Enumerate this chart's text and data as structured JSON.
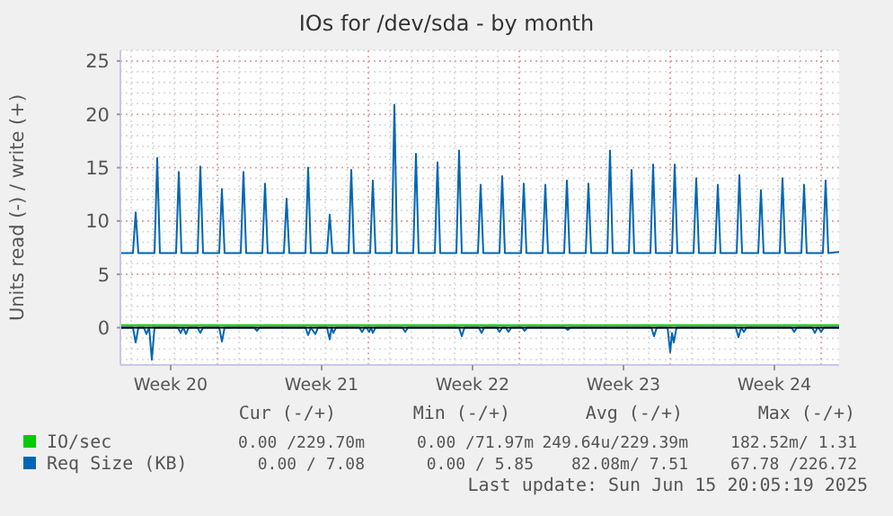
{
  "chart_data": {
    "type": "line",
    "title": "IOs for /dev/sda - by month",
    "ylabel": "Units read (-) / write (+)",
    "xlim": [
      "2025-05-13T12:00",
      "2025-06-15T20:00"
    ],
    "xticks": [
      {
        "value": "2025-05-15T20:00",
        "label": "Week 20"
      },
      {
        "value": "2025-05-22T20:00",
        "label": "Week 21"
      },
      {
        "value": "2025-05-29T20:00",
        "label": "Week 22"
      },
      {
        "value": "2025-06-05T20:00",
        "label": "Week 23"
      },
      {
        "value": "2025-06-12T20:00",
        "label": "Week 24"
      }
    ],
    "ylim": [
      -3.5,
      26
    ],
    "yticks": [
      0,
      5,
      10,
      15,
      20,
      25
    ],
    "grid": true,
    "legend": "bottom",
    "ref_lines": [
      {
        "axis": "y",
        "value": 0,
        "color": "#000000"
      }
    ],
    "series": [
      {
        "name": "IO/sec",
        "color": "#00cc00",
        "x": [
          "2025-05-13T12:00",
          "2025-06-15T20:00"
        ],
        "values": [
          0.23,
          0.23
        ]
      },
      {
        "name": "Req Size (KB)",
        "color": "#0066b3",
        "x": [
          "2025-05-13T12:00",
          "2025-05-14T02:00",
          "2025-05-14T05:00",
          "2025-05-14T08:00",
          "2025-05-15T02:00",
          "2025-05-15T05:00",
          "2025-05-15T08:00",
          "2025-05-16T02:00",
          "2025-05-16T05:00",
          "2025-05-16T08:00",
          "2025-05-17T02:00",
          "2025-05-17T05:00",
          "2025-05-17T08:00",
          "2025-05-18T02:00",
          "2025-05-18T05:00",
          "2025-05-18T08:00",
          "2025-05-19T02:00",
          "2025-05-19T05:00",
          "2025-05-19T08:00",
          "2025-05-20T02:00",
          "2025-05-20T05:00",
          "2025-05-20T08:00",
          "2025-05-21T02:00",
          "2025-05-21T05:00",
          "2025-05-21T08:00",
          "2025-05-22T02:00",
          "2025-05-22T05:00",
          "2025-05-22T08:00",
          "2025-05-23T02:00",
          "2025-05-23T05:00",
          "2025-05-23T08:00",
          "2025-05-24T02:00",
          "2025-05-24T05:00",
          "2025-05-24T08:00",
          "2025-05-25T02:00",
          "2025-05-25T05:00",
          "2025-05-25T08:00",
          "2025-05-26T02:00",
          "2025-05-26T05:00",
          "2025-05-26T08:00",
          "2025-05-27T02:00",
          "2025-05-27T05:00",
          "2025-05-27T08:00",
          "2025-05-28T02:00",
          "2025-05-28T05:00",
          "2025-05-28T08:00",
          "2025-05-29T02:00",
          "2025-05-29T05:00",
          "2025-05-29T08:00",
          "2025-05-30T02:00",
          "2025-05-30T05:00",
          "2025-05-30T08:00",
          "2025-05-31T02:00",
          "2025-05-31T05:00",
          "2025-05-31T08:00",
          "2025-06-01T02:00",
          "2025-06-01T05:00",
          "2025-06-01T08:00",
          "2025-06-02T02:00",
          "2025-06-02T05:00",
          "2025-06-02T08:00",
          "2025-06-03T02:00",
          "2025-06-03T05:00",
          "2025-06-03T08:00",
          "2025-06-04T02:00",
          "2025-06-04T05:00",
          "2025-06-04T08:00",
          "2025-06-05T02:00",
          "2025-06-05T05:00",
          "2025-06-05T08:00",
          "2025-06-06T02:00",
          "2025-06-06T05:00",
          "2025-06-06T08:00",
          "2025-06-07T02:00",
          "2025-06-07T05:00",
          "2025-06-07T08:00",
          "2025-06-08T02:00",
          "2025-06-08T05:00",
          "2025-06-08T08:00",
          "2025-06-09T02:00",
          "2025-06-09T05:00",
          "2025-06-09T08:00",
          "2025-06-10T02:00",
          "2025-06-10T05:00",
          "2025-06-10T08:00",
          "2025-06-11T02:00",
          "2025-06-11T05:00",
          "2025-06-11T08:00",
          "2025-06-12T02:00",
          "2025-06-12T05:00",
          "2025-06-12T08:00",
          "2025-06-13T02:00",
          "2025-06-13T05:00",
          "2025-06-13T08:00",
          "2025-06-14T02:00",
          "2025-06-14T05:00",
          "2025-06-14T08:00",
          "2025-06-15T02:00",
          "2025-06-15T05:00",
          "2025-06-15T08:00",
          "2025-06-15T20:00"
        ],
        "values": [
          7.0,
          7.0,
          10.8,
          7.0,
          7.0,
          15.9,
          7.0,
          7.0,
          14.6,
          7.0,
          7.0,
          15.1,
          7.0,
          7.0,
          13.0,
          7.0,
          7.0,
          14.6,
          7.0,
          7.0,
          13.5,
          7.0,
          7.0,
          12.1,
          7.0,
          7.0,
          15.0,
          7.0,
          7.0,
          10.6,
          7.0,
          7.0,
          14.8,
          7.0,
          7.0,
          13.8,
          7.0,
          7.0,
          20.9,
          7.0,
          7.0,
          16.3,
          7.0,
          7.0,
          15.5,
          7.0,
          7.0,
          16.6,
          7.0,
          7.0,
          13.4,
          7.0,
          7.0,
          14.2,
          7.0,
          7.0,
          13.5,
          7.0,
          7.0,
          13.4,
          7.0,
          7.0,
          13.8,
          7.0,
          7.0,
          13.5,
          7.0,
          7.0,
          16.6,
          7.0,
          7.0,
          14.8,
          7.0,
          7.0,
          15.3,
          7.0,
          7.0,
          15.3,
          7.0,
          7.0,
          14.0,
          7.0,
          7.0,
          13.4,
          7.0,
          7.0,
          14.3,
          7.0,
          7.0,
          12.9,
          7.0,
          7.0,
          14.0,
          7.0,
          7.0,
          13.4,
          7.0,
          7.0,
          13.8,
          7.0,
          7.1
        ]
      },
      {
        "color": "#0066b3",
        "x": [
          "2025-05-13T12:00",
          "2025-05-14T02:00",
          "2025-05-14T05:00",
          "2025-05-14T08:00",
          "2025-05-14T14:00",
          "2025-05-14T17:00",
          "2025-05-14T20:00",
          "2025-05-14T23:00",
          "2025-05-15T02:00",
          "2025-05-16T04:00",
          "2025-05-16T07:00",
          "2025-05-16T10:00",
          "2025-05-16T13:00",
          "2025-05-16T16:00",
          "2025-05-17T02:00",
          "2025-05-17T05:00",
          "2025-05-17T08:00",
          "2025-05-18T02:00",
          "2025-05-18T05:00",
          "2025-05-18T08:00",
          "2025-05-19T17:00",
          "2025-05-19T20:00",
          "2025-05-19T23:00",
          "2025-05-22T02:00",
          "2025-05-22T05:00",
          "2025-05-22T08:00",
          "2025-05-22T13:00",
          "2025-05-22T16:00",
          "2025-05-23T02:00",
          "2025-05-23T05:00",
          "2025-05-23T07:00",
          "2025-05-23T09:00",
          "2025-05-23T12:00",
          "2025-05-24T14:00",
          "2025-05-24T17:00",
          "2025-05-24T20:00",
          "2025-05-24T22:00",
          "2025-05-25T01:00",
          "2025-05-25T03:00",
          "2025-05-25T05:00",
          "2025-05-25T08:00",
          "2025-05-26T14:00",
          "2025-05-26T17:00",
          "2025-05-26T20:00",
          "2025-05-29T05:00",
          "2025-05-29T08:00",
          "2025-05-29T11:00",
          "2025-05-30T03:00",
          "2025-05-30T06:00",
          "2025-05-30T09:00",
          "2025-05-30T23:00",
          "2025-05-31T02:00",
          "2025-05-31T05:00",
          "2025-05-31T09:00",
          "2025-05-31T12:00",
          "2025-05-31T15:00",
          "2025-06-01T03:00",
          "2025-06-01T06:00",
          "2025-06-01T09:00",
          "2025-06-03T03:00",
          "2025-06-03T06:00",
          "2025-06-03T09:00",
          "2025-06-07T03:00",
          "2025-06-07T06:00",
          "2025-06-07T09:00",
          "2025-06-07T21:00",
          "2025-06-08T00:00",
          "2025-06-08T02:00",
          "2025-06-08T04:00",
          "2025-06-08T07:00",
          "2025-06-11T01:00",
          "2025-06-11T04:00",
          "2025-06-11T07:00",
          "2025-06-11T10:00",
          "2025-06-11T13:00",
          "2025-06-13T15:00",
          "2025-06-13T18:00",
          "2025-06-13T21:00",
          "2025-06-14T14:00",
          "2025-06-14T17:00",
          "2025-06-14T20:00",
          "2025-06-14T21:00",
          "2025-06-15T00:00",
          "2025-06-15T03:00",
          "2025-06-15T20:00"
        ],
        "values": [
          0,
          0,
          -1.4,
          0,
          0,
          -0.6,
          0,
          -3.0,
          0,
          0,
          -0.5,
          0,
          -0.6,
          0,
          0,
          -0.5,
          0,
          0,
          -1.3,
          0,
          0,
          -0.3,
          0,
          0,
          -0.7,
          0,
          -0.6,
          0,
          0,
          -1.1,
          0,
          -0.5,
          0,
          0,
          -0.4,
          0,
          0,
          -0.4,
          0,
          -0.5,
          0,
          0,
          -0.4,
          0,
          0,
          -0.8,
          0,
          0,
          -0.5,
          0,
          0,
          -0.4,
          0,
          0,
          -0.4,
          0,
          0,
          -0.3,
          0,
          0,
          -0.2,
          0,
          0,
          -0.8,
          0,
          0,
          -2.3,
          -0.5,
          -1.4,
          0,
          0,
          -0.9,
          0,
          -0.4,
          0,
          0,
          -0.4,
          0,
          0,
          -0.5,
          0,
          0,
          -0.4,
          0,
          0
        ]
      }
    ],
    "annotations": [
      "Cur (-/+)",
      "Min (-/+)",
      "Avg (-/+)",
      "Max (-/+)",
      "0.00 /229.70m",
      "0.00 /71.97m",
      "249.64u/229.39m",
      "182.52m/ 1.31",
      "0.00 / 7.08",
      "0.00 / 5.85",
      "82.08m/ 7.51",
      "67.78 /226.72",
      "Last update: Sun Jun 15 20:05:19 2025"
    ]
  }
}
